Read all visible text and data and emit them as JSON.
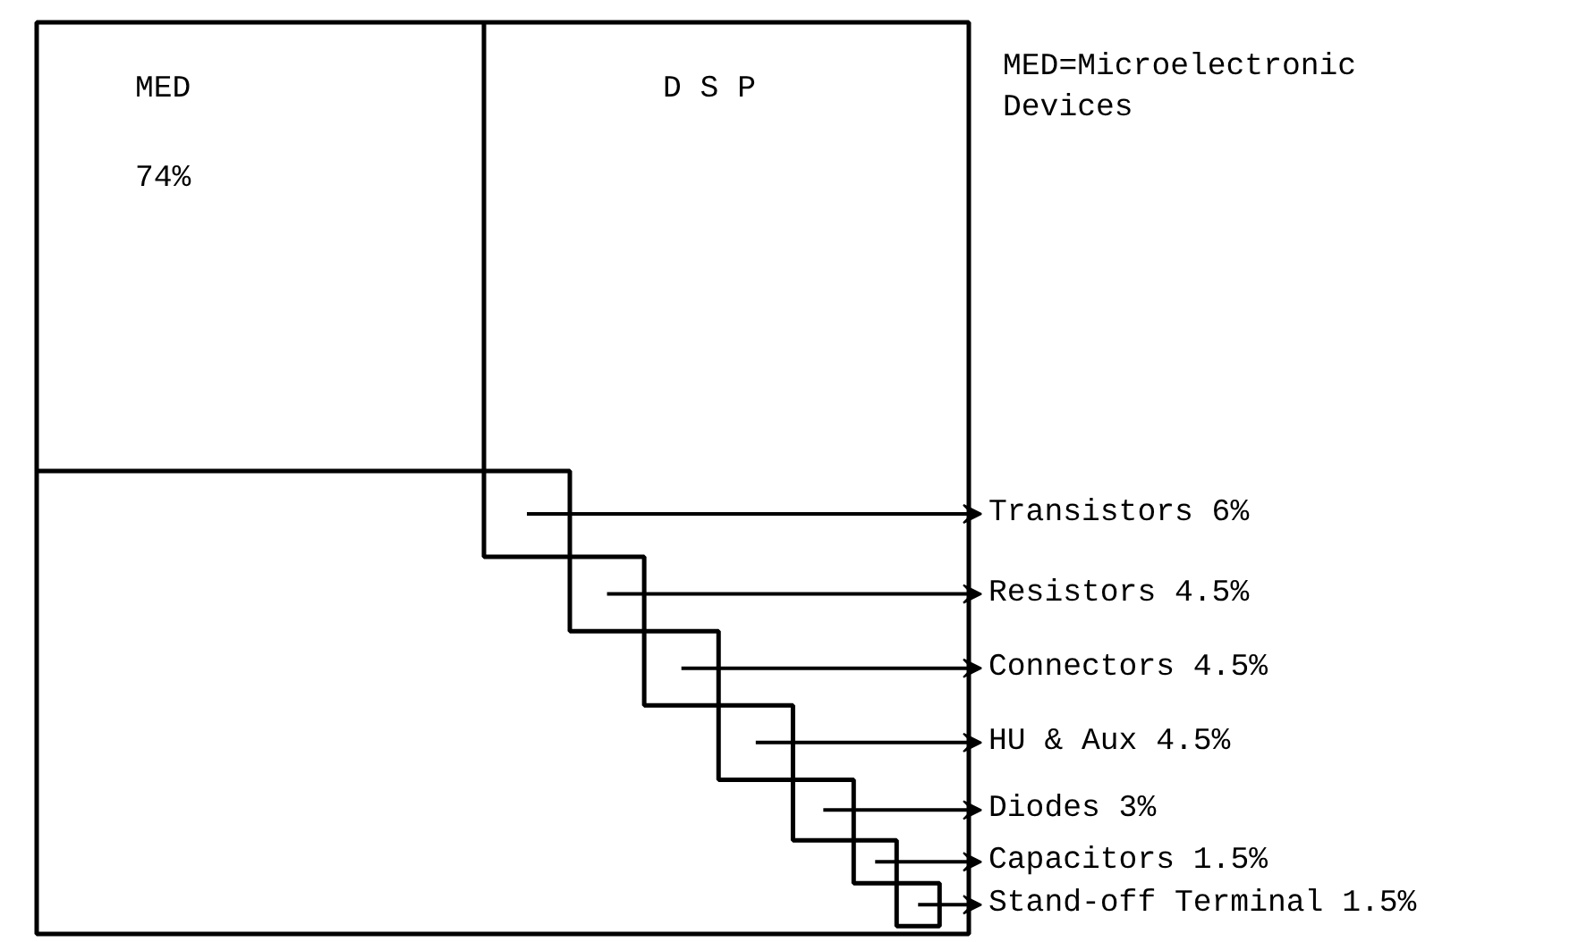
{
  "chart_data": {
    "type": "other",
    "categories": [
      "MED",
      "Transistors",
      "Resistors",
      "Connectors",
      "HU & Aux",
      "Diodes",
      "Capacitors",
      "Stand-off Terminal"
    ],
    "values": [
      74,
      6,
      4.5,
      4.5,
      4.5,
      3,
      1.5,
      1.5
    ],
    "value_labels": [
      "74%",
      "6%",
      "4.5%",
      "4.5%",
      "4.5%",
      "3%",
      "1.5%",
      "1.5%"
    ],
    "color": "#000000",
    "annotations": [
      "D S P",
      "MED=Microelectronic\nDevices"
    ]
  }
}
